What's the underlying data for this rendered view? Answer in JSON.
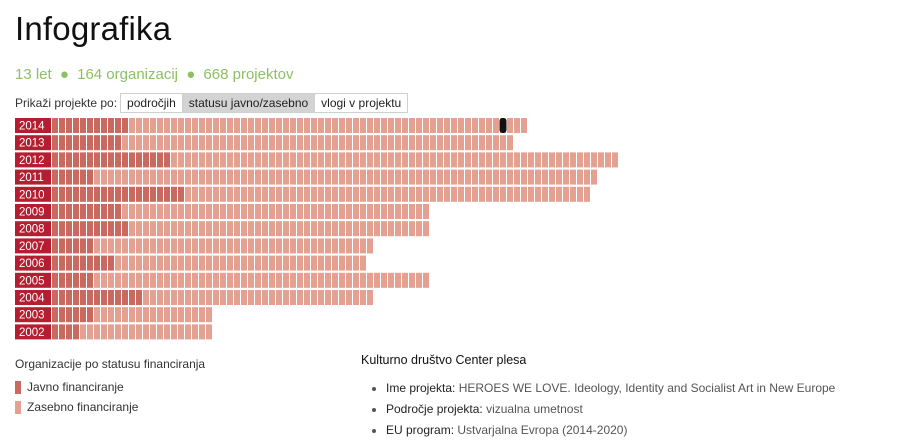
{
  "title": "Infografika",
  "stats": {
    "years": "13 let",
    "organizations": "164 organizacij",
    "projects": "668 projektov",
    "separator": "●",
    "color": "#8cc163"
  },
  "filter": {
    "label": "Prikaži projekte po:",
    "options": [
      "področjih",
      "statusu javno/zasebno",
      "vlogi v projektu"
    ],
    "active": "statusu javno/zasebno"
  },
  "colors": {
    "year_label": "#b41e30",
    "public": "#c9695f",
    "private": "#e4a090",
    "marker": "#111111"
  },
  "chart_data": {
    "type": "bar",
    "orientation": "horizontal-stacked",
    "unit": "projects",
    "categories": [
      "2014",
      "2013",
      "2012",
      "2011",
      "2010",
      "2009",
      "2008",
      "2007",
      "2006",
      "2005",
      "2004",
      "2003",
      "2002"
    ],
    "series": [
      {
        "name": "Javno financiranje",
        "values": [
          11,
          10,
          17,
          6,
          19,
          10,
          11,
          6,
          9,
          6,
          13,
          6,
          4
        ]
      },
      {
        "name": "Zasebno financiranje",
        "values": [
          57,
          56,
          64,
          72,
          58,
          44,
          43,
          40,
          36,
          48,
          33,
          17,
          19
        ]
      }
    ],
    "selected": {
      "year": "2014",
      "index": 64
    }
  },
  "legend": {
    "title": "Organizacije po statusu financiranja",
    "items": [
      {
        "label": "Javno financiranje",
        "color": "#c9695f"
      },
      {
        "label": "Zasebno financiranje",
        "color": "#e4a090"
      }
    ]
  },
  "details": {
    "name": "Kulturno društvo Center plesa",
    "items": [
      {
        "key": "Ime projekta:",
        "value": "HEROES WE LOVE. Ideology, Identity and Socialist Art in New Europe"
      },
      {
        "key": "Področje projekta:",
        "value": "vizualna umetnost"
      },
      {
        "key": "EU program:",
        "value": "Ustvarjalna Evropa (2014-2020)"
      }
    ]
  }
}
